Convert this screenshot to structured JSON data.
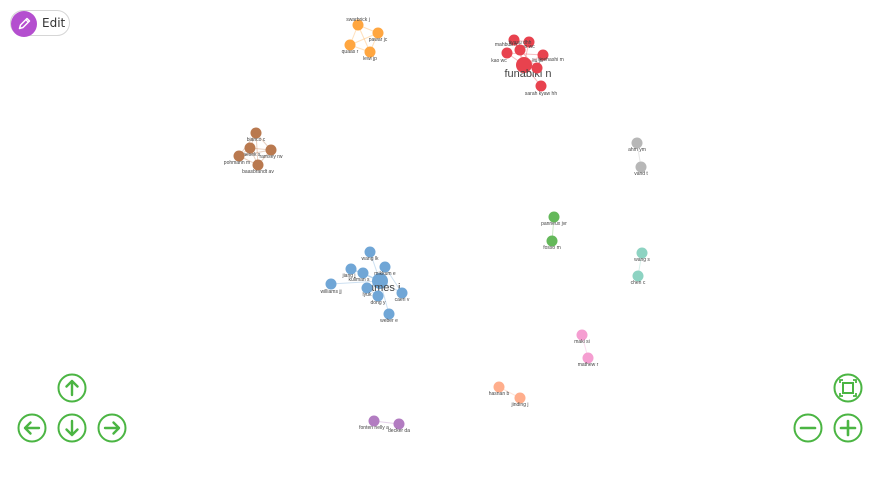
{
  "toolbar": {
    "edit_label": "Edit"
  },
  "navigation": {
    "up": "arrow-up-icon",
    "down": "arrow-down-icon",
    "left": "arrow-left-icon",
    "right": "arrow-right-icon",
    "fit": "fit-screen-icon",
    "zoom_out": "zoom-out-icon",
    "zoom_in": "zoom-in-icon",
    "color": "#4bb543"
  },
  "clusters": [
    {
      "color": "#ffa640",
      "nodes": [
        {
          "id": "o1",
          "label": "swarbrick j"
        },
        {
          "id": "o2",
          "label": "pawar jc"
        },
        {
          "id": "o3",
          "label": "quaas r"
        },
        {
          "id": "o4",
          "label": "lewi jp"
        }
      ],
      "edges": [
        [
          "o1",
          "o2"
        ],
        [
          "o1",
          "o3"
        ],
        [
          "o1",
          "o4"
        ],
        [
          "o2",
          "o3"
        ],
        [
          "o2",
          "o4"
        ],
        [
          "o3",
          "o4"
        ]
      ]
    },
    {
      "color": "#e8424e",
      "nodes": [
        {
          "id": "r0",
          "label": "funabiki n",
          "major": true
        },
        {
          "id": "r1",
          "label": "mahbub n"
        },
        {
          "id": "r2",
          "label": "kuo wc"
        },
        {
          "id": "r3",
          "label": "kao wc"
        },
        {
          "id": "r4",
          "label": "tiyasu dhh"
        },
        {
          "id": "r5",
          "label": "tigehashi m"
        },
        {
          "id": "r6",
          "label": "liu jr"
        },
        {
          "id": "r7",
          "label": "sarah kyaw hh"
        }
      ],
      "edges": [
        [
          "r0",
          "r1"
        ],
        [
          "r0",
          "r2"
        ],
        [
          "r0",
          "r3"
        ],
        [
          "r0",
          "r4"
        ],
        [
          "r0",
          "r5"
        ],
        [
          "r0",
          "r6"
        ],
        [
          "r0",
          "r7"
        ],
        [
          "r1",
          "r2"
        ],
        [
          "r3",
          "r5"
        ],
        [
          "r4",
          "r6"
        ]
      ]
    },
    {
      "color": "#b9794f",
      "nodes": [
        {
          "id": "b1",
          "label": "bianco c"
        },
        {
          "id": "b2",
          "label": "klaesek s"
        },
        {
          "id": "b3",
          "label": "ramsey rw"
        },
        {
          "id": "b4",
          "label": "pohmann m"
        },
        {
          "id": "b5",
          "label": "baasbrandt av"
        }
      ],
      "edges": [
        [
          "b1",
          "b2"
        ],
        [
          "b1",
          "b3"
        ],
        [
          "b1",
          "b4"
        ],
        [
          "b1",
          "b5"
        ],
        [
          "b2",
          "b3"
        ],
        [
          "b2",
          "b4"
        ],
        [
          "b2",
          "b5"
        ],
        [
          "b3",
          "b4"
        ],
        [
          "b3",
          "b5"
        ],
        [
          "b4",
          "b5"
        ]
      ]
    },
    {
      "color": "#b7b7b7",
      "nodes": [
        {
          "id": "g1",
          "label": "ahm ym"
        },
        {
          "id": "g2",
          "label": "vand t"
        }
      ],
      "edges": [
        [
          "g1",
          "g2"
        ]
      ]
    },
    {
      "color": "#64b85a",
      "nodes": [
        {
          "id": "gr1",
          "label": "panneux jvr"
        },
        {
          "id": "gr2",
          "label": "fosso m"
        }
      ],
      "edges": [
        [
          "gr1",
          "gr2"
        ]
      ]
    },
    {
      "color": "#70a6d6",
      "nodes": [
        {
          "id": "bl0",
          "label": "james j",
          "major": true
        },
        {
          "id": "bl1",
          "label": "wang lk"
        },
        {
          "id": "bl2",
          "label": "jiang j"
        },
        {
          "id": "bl3",
          "label": "mikkum e"
        },
        {
          "id": "bl4",
          "label": "kullman s"
        },
        {
          "id": "bl5",
          "label": "williams jj"
        },
        {
          "id": "bl6",
          "label": "lyuk"
        },
        {
          "id": "bl7",
          "label": "dong y"
        },
        {
          "id": "bl8",
          "label": "caeri v"
        },
        {
          "id": "bl9",
          "label": "weber e"
        }
      ],
      "edges": [
        [
          "bl0",
          "bl1"
        ],
        [
          "bl0",
          "bl2"
        ],
        [
          "bl0",
          "bl3"
        ],
        [
          "bl0",
          "bl4"
        ],
        [
          "bl0",
          "bl5"
        ],
        [
          "bl0",
          "bl6"
        ],
        [
          "bl0",
          "bl7"
        ],
        [
          "bl0",
          "bl8"
        ],
        [
          "bl0",
          "bl9"
        ],
        [
          "bl2",
          "bl4"
        ],
        [
          "bl3",
          "bl8"
        ],
        [
          "bl6",
          "bl7"
        ]
      ]
    },
    {
      "color": "#8dd3c2",
      "nodes": [
        {
          "id": "t1",
          "label": "wang s"
        },
        {
          "id": "t2",
          "label": "chen c"
        }
      ],
      "edges": [
        [
          "t1",
          "t2"
        ]
      ]
    },
    {
      "color": "#f59ed1",
      "nodes": [
        {
          "id": "p1",
          "label": "maki si"
        },
        {
          "id": "p2",
          "label": "mathew r"
        }
      ],
      "edges": [
        [
          "p1",
          "p2"
        ]
      ]
    },
    {
      "color": "#ffae8c",
      "nodes": [
        {
          "id": "s1",
          "label": "hasnan b"
        },
        {
          "id": "s2",
          "label": "jinding j"
        }
      ],
      "edges": [
        [
          "s1",
          "s2"
        ]
      ]
    },
    {
      "color": "#b27cc1",
      "nodes": [
        {
          "id": "v1",
          "label": "fonten nelly a"
        },
        {
          "id": "v2",
          "label": "decker da"
        }
      ],
      "edges": [
        [
          "v1",
          "v2"
        ]
      ]
    }
  ]
}
